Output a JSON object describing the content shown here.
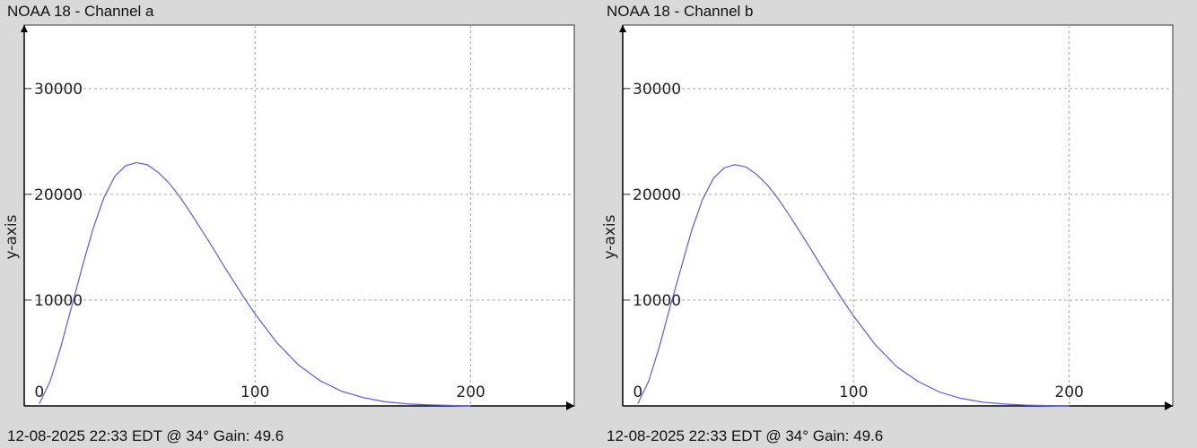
{
  "panels": [
    {
      "title": "NOAA 18 - Channel a",
      "footer": "12-08-2025 22:33 EDT @ 34° Gain: 49.6"
    },
    {
      "title": "NOAA 18 - Channel b",
      "footer": "12-08-2025 22:33 EDT @ 34° Gain: 49.6"
    }
  ],
  "chart_data": [
    {
      "type": "line",
      "title": "NOAA 18 - Channel a",
      "xlabel": "",
      "ylabel": "y-axis",
      "xlim": [
        -7,
        248
      ],
      "ylim": [
        0,
        36000
      ],
      "xticks": [
        0,
        100,
        200
      ],
      "yticks": [
        0,
        10000,
        20000,
        30000
      ],
      "grid": true,
      "line_color": "#6666dd",
      "series": [
        {
          "x": [
            0,
            5,
            10,
            15,
            20,
            25,
            30,
            35,
            40,
            45,
            50,
            55,
            60,
            65,
            70,
            75,
            80,
            85,
            90,
            95,
            100,
            110,
            120,
            130,
            140,
            150,
            160,
            170,
            180,
            190,
            200
          ],
          "y": [
            200,
            2300,
            5600,
            9400,
            13200,
            16800,
            19700,
            21700,
            22700,
            23000,
            22800,
            22100,
            21100,
            19800,
            18300,
            16700,
            15100,
            13400,
            11800,
            10200,
            8700,
            6000,
            3900,
            2400,
            1400,
            800,
            400,
            200,
            100,
            50,
            0
          ]
        }
      ]
    },
    {
      "type": "line",
      "title": "NOAA 18 - Channel b",
      "xlabel": "",
      "ylabel": "y-axis",
      "xlim": [
        -7,
        248
      ],
      "ylim": [
        0,
        36000
      ],
      "xticks": [
        0,
        100,
        200
      ],
      "yticks": [
        0,
        10000,
        20000,
        30000
      ],
      "grid": true,
      "line_color": "#6666dd",
      "series": [
        {
          "x": [
            0,
            5,
            10,
            15,
            20,
            25,
            30,
            35,
            40,
            45,
            50,
            55,
            60,
            65,
            70,
            75,
            80,
            85,
            90,
            95,
            100,
            110,
            120,
            130,
            140,
            150,
            160,
            170,
            180,
            190,
            200
          ],
          "y": [
            200,
            2300,
            5600,
            9400,
            13000,
            16600,
            19500,
            21500,
            22500,
            22800,
            22600,
            21900,
            20900,
            19600,
            18100,
            16500,
            14900,
            13200,
            11600,
            10000,
            8500,
            5800,
            3700,
            2300,
            1300,
            700,
            350,
            180,
            80,
            30,
            0
          ]
        }
      ]
    }
  ]
}
